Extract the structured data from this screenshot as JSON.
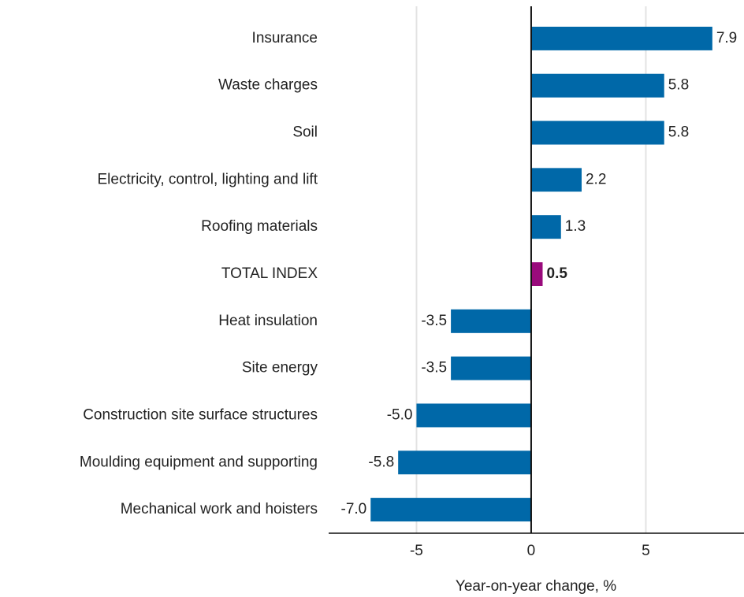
{
  "chart_data": {
    "type": "barh",
    "x_label": "Year-on-year change, %",
    "categories": [
      "Insurance",
      "Waste charges",
      "Soil",
      "Electricity, control, lighting and lift",
      "Roofing materials",
      "TOTAL INDEX",
      "Heat insulation",
      "Site energy",
      "Construction site surface structures",
      "Moulding equipment and supporting",
      "Mechanical work and hoisters"
    ],
    "values": [
      7.9,
      5.8,
      5.8,
      2.2,
      1.3,
      0.5,
      -3.5,
      -3.5,
      -5.0,
      -5.8,
      -7.0
    ],
    "value_labels": [
      "7.9",
      "5.8",
      "5.8",
      "2.2",
      "1.3",
      "0.5",
      "-3.5",
      "-3.5",
      "-5.0",
      "-5.8",
      "-7.0"
    ],
    "colors": [
      "#0068a8",
      "#0068a8",
      "#0068a8",
      "#0068a8",
      "#0068a8",
      "#990a7c",
      "#0068a8",
      "#0068a8",
      "#0068a8",
      "#0068a8",
      "#0068a8"
    ],
    "bold_labels": [
      false,
      false,
      false,
      false,
      false,
      true,
      false,
      false,
      false,
      false,
      false
    ],
    "xlim": [
      -8.83,
      9.28
    ],
    "xticks": [
      -5,
      0,
      5
    ],
    "grid": true
  }
}
